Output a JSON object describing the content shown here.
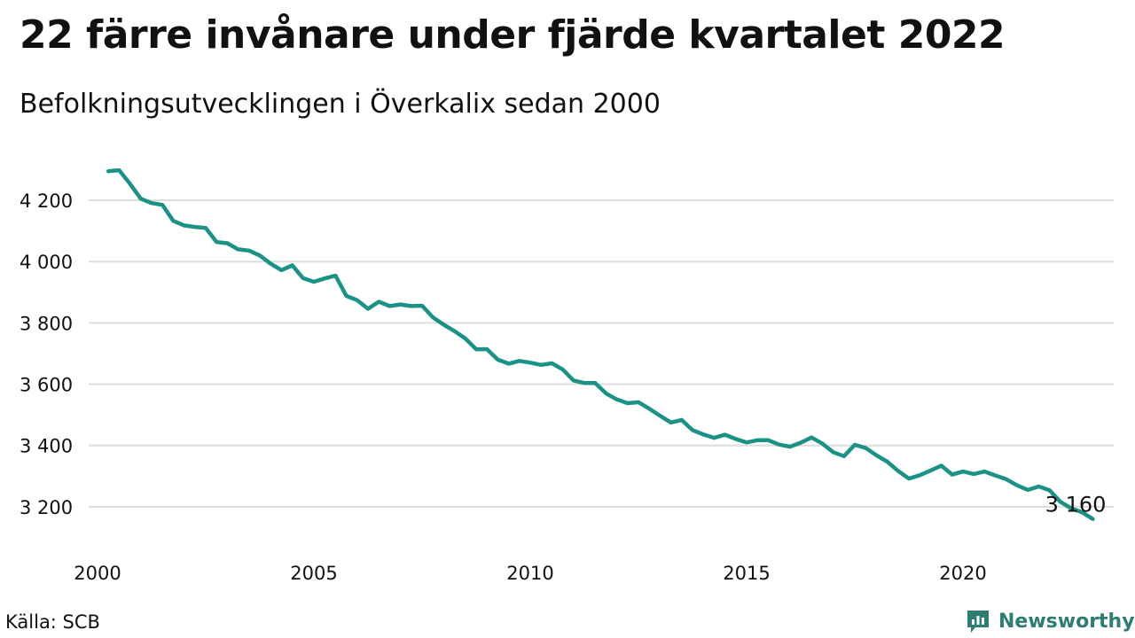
{
  "chart_data": {
    "type": "line",
    "title": "22 färre invånare under fjärde kvartalet 2022",
    "subtitle": "Befolkningsutvecklingen i Överkalix sedan 2000",
    "xlabel": "",
    "ylabel": "",
    "x_ticks": [
      "2000",
      "2005",
      "2010",
      "2015",
      "2020"
    ],
    "y_ticks": [
      "3 200",
      "3 400",
      "3 600",
      "3 800",
      "4 000",
      "4 200"
    ],
    "y_tick_values": [
      3200,
      3400,
      3600,
      3800,
      4000,
      4200
    ],
    "xlim": [
      2000,
      2023.3
    ],
    "ylim": [
      3110,
      4310
    ],
    "grid": "horizontal",
    "line_color": "#1a9285",
    "end_label": "3 160",
    "series": [
      {
        "x": [
          2000.25,
          2000.5,
          2000.75,
          2001.0,
          2001.25,
          2001.5,
          2001.75,
          2002.0,
          2002.25,
          2002.5,
          2002.75,
          2003.0,
          2003.25,
          2003.5,
          2003.75,
          2004.0,
          2004.25,
          2004.5,
          2004.75,
          2005.0,
          2005.25,
          2005.5,
          2005.75,
          2006.0,
          2006.25,
          2006.5,
          2006.75,
          2007.0,
          2007.25,
          2007.5,
          2007.75,
          2008.0,
          2008.25,
          2008.5,
          2008.75,
          2009.0,
          2009.25,
          2009.5,
          2009.75,
          2010.0,
          2010.25,
          2010.5,
          2010.75,
          2011.0,
          2011.25,
          2011.5,
          2011.75,
          2012.0,
          2012.25,
          2012.5,
          2012.75,
          2013.0,
          2013.25,
          2013.5,
          2013.75,
          2014.0,
          2014.25,
          2014.5,
          2014.75,
          2015.0,
          2015.25,
          2015.5,
          2015.75,
          2016.0,
          2016.25,
          2016.5,
          2016.75,
          2017.0,
          2017.25,
          2017.5,
          2017.75,
          2018.0,
          2018.25,
          2018.5,
          2018.75,
          2019.0,
          2019.25,
          2019.5,
          2019.75,
          2020.0,
          2020.25,
          2020.5,
          2020.75,
          2021.0,
          2021.25,
          2021.5,
          2021.75,
          2022.0,
          2022.25,
          2022.5,
          2022.75,
          2023.0
        ],
        "y": [
          4295,
          4298,
          4254,
          4205,
          4191,
          4185,
          4133,
          4118,
          4113,
          4110,
          4064,
          4060,
          4040,
          4036,
          4020,
          3993,
          3972,
          3988,
          3946,
          3934,
          3945,
          3954,
          3888,
          3874,
          3846,
          3869,
          3855,
          3860,
          3855,
          3856,
          3818,
          3794,
          3773,
          3749,
          3714,
          3714,
          3680,
          3667,
          3676,
          3670,
          3663,
          3668,
          3648,
          3612,
          3604,
          3604,
          3570,
          3550,
          3538,
          3541,
          3520,
          3497,
          3475,
          3483,
          3450,
          3436,
          3425,
          3435,
          3421,
          3410,
          3417,
          3417,
          3403,
          3396,
          3409,
          3426,
          3406,
          3378,
          3365,
          3402,
          3392,
          3368,
          3347,
          3317,
          3292,
          3303,
          3318,
          3334,
          3305,
          3315,
          3307,
          3315,
          3302,
          3290,
          3270,
          3255,
          3266,
          3254,
          3216,
          3195,
          3182,
          3160
        ]
      }
    ]
  },
  "source_label": "Källa: SCB",
  "brand": {
    "name": "Newsworthy",
    "icon": "bar-chart-speech-bubble-icon",
    "color": "#2e7d73"
  }
}
